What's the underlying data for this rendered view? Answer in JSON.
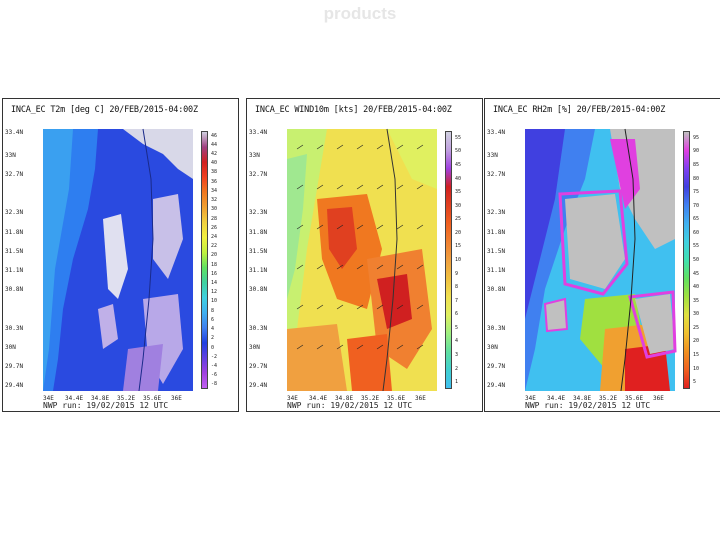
{
  "slide": {
    "title": "products"
  },
  "panels": [
    {
      "title": "INCA_EC T2m [deg C] 20/FEB/2015-04:00Z",
      "footer": "NWP run: 19/02/2015 12 UTC",
      "lat_labels": [
        "33.4N",
        "33N",
        "32.7N",
        "32.3N",
        "31.8N",
        "31.5N",
        "31.1N",
        "30.8N",
        "30.3N",
        "30N",
        "29.7N",
        "29.4N"
      ],
      "lon_labels": [
        "34E",
        "34.4E",
        "34.8E",
        "35.2E",
        "35.6E",
        "36E"
      ],
      "colorbar_ticks": [
        "46",
        "44",
        "42",
        "40",
        "38",
        "36",
        "34",
        "32",
        "30",
        "28",
        "26",
        "24",
        "22",
        "20",
        "18",
        "16",
        "14",
        "12",
        "10",
        "8",
        "6",
        "4",
        "2",
        "0",
        "-2",
        "-4",
        "-6",
        "-8"
      ],
      "colorbar_colors": [
        "#d0d0e0",
        "#a04080",
        "#d02020",
        "#f04020",
        "#f07820",
        "#f0a030",
        "#f0d040",
        "#f0f040",
        "#c0f040",
        "#60e060",
        "#40d0a0",
        "#40d0e0",
        "#40b0f0",
        "#4080f0",
        "#2040e0",
        "#6040e0",
        "#a040e0",
        "#c060f0"
      ]
    },
    {
      "title": "INCA_EC WIND10m [kts] 20/FEB/2015-04:00Z",
      "footer": "NWP run: 19/02/2015 12 UTC",
      "lat_labels": [
        "33.4N",
        "33N",
        "32.7N",
        "32.3N",
        "31.8N",
        "31.5N",
        "31.1N",
        "30.8N",
        "30.3N",
        "30N",
        "29.7N",
        "29.4N"
      ],
      "lon_labels": [
        "34E",
        "34.4E",
        "34.8E",
        "35.2E",
        "35.6E",
        "36E"
      ],
      "colorbar_ticks": [
        "55",
        "50",
        "45",
        "40",
        "35",
        "30",
        "25",
        "20",
        "15",
        "10",
        "9",
        "8",
        "7",
        "6",
        "5",
        "4",
        "3",
        "2",
        "1"
      ],
      "colorbar_colors": [
        "#d0d0e0",
        "#c0a0e0",
        "#a040e0",
        "#d02020",
        "#e04020",
        "#f06020",
        "#f08030",
        "#f0a040",
        "#f0c040",
        "#f0e050",
        "#e0f060",
        "#a0f080",
        "#60e0a0",
        "#40d0d0",
        "#40c0f0"
      ]
    },
    {
      "title": "INCA_EC RH2m [%] 20/FEB/2015-04:00Z",
      "footer": "NWP run: 19/02/2015 12 UTC",
      "lat_labels": [
        "33.4N",
        "33N",
        "32.7N",
        "32.3N",
        "31.8N",
        "31.5N",
        "31.1N",
        "30.8N",
        "30.3N",
        "30N",
        "29.7N",
        "29.4N"
      ],
      "lon_labels": [
        "34E",
        "34.4E",
        "34.8E",
        "35.2E",
        "35.6E",
        "36E"
      ],
      "colorbar_ticks": [
        "95",
        "90",
        "85",
        "80",
        "75",
        "70",
        "65",
        "60",
        "55",
        "50",
        "45",
        "40",
        "35",
        "30",
        "25",
        "20",
        "15",
        "10",
        "5"
      ],
      "colorbar_colors": [
        "#c0c0c0",
        "#e040e0",
        "#8040f0",
        "#4040e0",
        "#4080f0",
        "#40b0f0",
        "#40d0e0",
        "#40e0b0",
        "#60e060",
        "#a0e040",
        "#e0e040",
        "#f0c030",
        "#f09020",
        "#f06020",
        "#e02020"
      ]
    }
  ]
}
